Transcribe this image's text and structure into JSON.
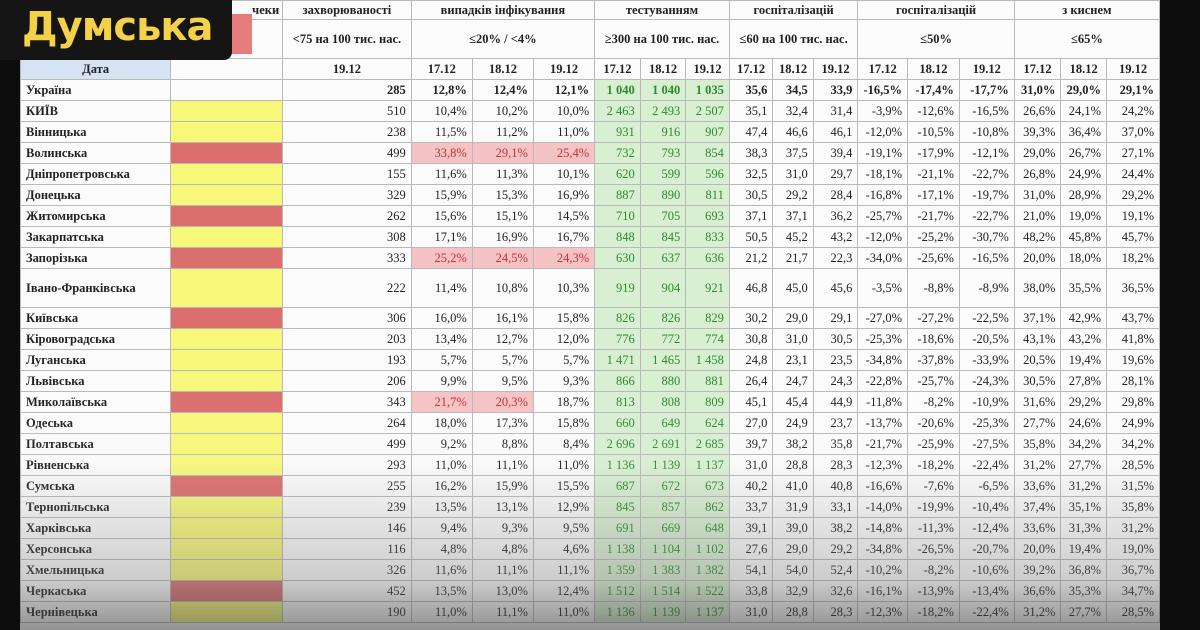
{
  "brand": {
    "logo_text": "Думська"
  },
  "header": {
    "g0": [
      "чеки",
      "захворюваності",
      "випадків інфікування",
      "тестуванням",
      "госпіталізацій",
      "госпіталізацій",
      "з киснем"
    ],
    "g1": [
      "<75 на 100 тис. нас.",
      "≤20% / <4%",
      "≥300 на 100 тис. нас.",
      "≤60 на 100 тис. нас.",
      "≤50%",
      "≤65%"
    ],
    "date_label": "Дата",
    "d_single": "19.12",
    "d": [
      "17.12",
      "18.12",
      "19.12"
    ]
  },
  "rows": [
    {
      "name": "Україна",
      "flag": "none",
      "c": "285",
      "i": [
        "12,8%",
        "12,4%",
        "12,1%"
      ],
      "t": [
        "1 040",
        "1 040",
        "1 035"
      ],
      "h": [
        "35,6",
        "34,5",
        "33,9"
      ],
      "g": [
        "-16,5%",
        "-17,4%",
        "-17,7%"
      ],
      "o": [
        "31,0%",
        "29,0%",
        "29,1%"
      ]
    },
    {
      "name": "КИЇВ",
      "flag": "yellow",
      "c": "510",
      "i": [
        "10,4%",
        "10,2%",
        "10,0%"
      ],
      "t": [
        "2 463",
        "2 493",
        "2 507"
      ],
      "h": [
        "35,1",
        "32,4",
        "31,4"
      ],
      "g": [
        "-3,9%",
        "-12,6%",
        "-16,5%"
      ],
      "o": [
        "26,6%",
        "24,1%",
        "24,2%"
      ]
    },
    {
      "name": "Вінницька",
      "flag": "yellow",
      "c": "238",
      "i": [
        "11,5%",
        "11,2%",
        "11,0%"
      ],
      "t": [
        "931",
        "916",
        "907"
      ],
      "h": [
        "47,4",
        "46,6",
        "46,1"
      ],
      "g": [
        "-12,0%",
        "-10,5%",
        "-10,8%"
      ],
      "o": [
        "39,3%",
        "36,4%",
        "37,0%"
      ]
    },
    {
      "name": "Волинська",
      "flag": "red",
      "c": "499",
      "i": [
        "33,8%",
        "29,1%",
        "25,4%"
      ],
      "ipink": true,
      "t": [
        "732",
        "793",
        "854"
      ],
      "h": [
        "38,3",
        "37,5",
        "39,4"
      ],
      "g": [
        "-19,1%",
        "-17,9%",
        "-12,1%"
      ],
      "o": [
        "29,0%",
        "26,7%",
        "27,1%"
      ]
    },
    {
      "name": "Дніпропетровська",
      "flag": "yellow",
      "c": "155",
      "i": [
        "11,6%",
        "11,3%",
        "10,1%"
      ],
      "t": [
        "620",
        "599",
        "596"
      ],
      "h": [
        "32,5",
        "31,0",
        "29,7"
      ],
      "g": [
        "-18,1%",
        "-21,1%",
        "-22,7%"
      ],
      "o": [
        "26,8%",
        "24,9%",
        "24,4%"
      ]
    },
    {
      "name": "Донецька",
      "flag": "yellow",
      "c": "329",
      "i": [
        "15,9%",
        "15,3%",
        "16,9%"
      ],
      "t": [
        "887",
        "890",
        "811"
      ],
      "h": [
        "30,5",
        "29,2",
        "28,4"
      ],
      "g": [
        "-16,8%",
        "-17,1%",
        "-19,7%"
      ],
      "o": [
        "31,0%",
        "28,9%",
        "29,2%"
      ]
    },
    {
      "name": "Житомирська",
      "flag": "red",
      "c": "262",
      "i": [
        "15,6%",
        "15,1%",
        "14,5%"
      ],
      "t": [
        "710",
        "705",
        "693"
      ],
      "h": [
        "37,1",
        "37,1",
        "36,2"
      ],
      "g": [
        "-25,7%",
        "-21,7%",
        "-22,7%"
      ],
      "o": [
        "21,0%",
        "19,0%",
        "19,1%"
      ]
    },
    {
      "name": "Закарпатська",
      "flag": "yellow",
      "c": "308",
      "i": [
        "17,1%",
        "16,9%",
        "16,7%"
      ],
      "t": [
        "848",
        "845",
        "833"
      ],
      "h": [
        "50,5",
        "45,2",
        "43,2"
      ],
      "g": [
        "-12,0%",
        "-25,2%",
        "-30,7%"
      ],
      "o": [
        "48,2%",
        "45,8%",
        "45,7%"
      ]
    },
    {
      "name": "Запорізька",
      "flag": "red",
      "c": "333",
      "i": [
        "25,2%",
        "24,5%",
        "24,3%"
      ],
      "ipink": true,
      "t": [
        "630",
        "637",
        "636"
      ],
      "h": [
        "21,2",
        "21,7",
        "22,3"
      ],
      "g": [
        "-34,0%",
        "-25,6%",
        "-16,5%"
      ],
      "o": [
        "20,0%",
        "18,0%",
        "18,2%"
      ]
    },
    {
      "name": "Івано-Франківська",
      "flag": "yellow",
      "tall": true,
      "c": "222",
      "i": [
        "11,4%",
        "10,8%",
        "10,3%"
      ],
      "t": [
        "919",
        "904",
        "921"
      ],
      "h": [
        "46,8",
        "45,0",
        "45,6"
      ],
      "g": [
        "-3,5%",
        "-8,8%",
        "-8,9%"
      ],
      "o": [
        "38,0%",
        "35,5%",
        "36,5%"
      ]
    },
    {
      "name": "Київська",
      "flag": "red",
      "c": "306",
      "i": [
        "16,0%",
        "16,1%",
        "15,8%"
      ],
      "t": [
        "826",
        "826",
        "829"
      ],
      "h": [
        "30,2",
        "29,0",
        "29,1"
      ],
      "g": [
        "-27,0%",
        "-27,2%",
        "-22,5%"
      ],
      "o": [
        "37,1%",
        "42,9%",
        "43,7%"
      ]
    },
    {
      "name": "Кіровоградська",
      "flag": "yellow",
      "c": "203",
      "i": [
        "13,4%",
        "12,7%",
        "12,0%"
      ],
      "t": [
        "776",
        "772",
        "774"
      ],
      "h": [
        "30,8",
        "31,0",
        "30,5"
      ],
      "g": [
        "-25,3%",
        "-18,6%",
        "-20,5%"
      ],
      "o": [
        "43,1%",
        "43,2%",
        "41,8%"
      ]
    },
    {
      "name": "Луганська",
      "flag": "yellow",
      "c": "193",
      "i": [
        "5,7%",
        "5,7%",
        "5,7%"
      ],
      "t": [
        "1 471",
        "1 465",
        "1 458"
      ],
      "h": [
        "24,8",
        "23,1",
        "23,5"
      ],
      "g": [
        "-34,8%",
        "-37,8%",
        "-33,9%"
      ],
      "o": [
        "20,5%",
        "19,4%",
        "19,6%"
      ]
    },
    {
      "name": "Львівська",
      "flag": "yellow",
      "c": "206",
      "i": [
        "9,9%",
        "9,5%",
        "9,3%"
      ],
      "t": [
        "866",
        "880",
        "881"
      ],
      "h": [
        "26,4",
        "24,7",
        "24,3"
      ],
      "g": [
        "-22,8%",
        "-25,7%",
        "-24,3%"
      ],
      "o": [
        "30,5%",
        "27,8%",
        "28,1%"
      ]
    },
    {
      "name": "Миколаївська",
      "flag": "red",
      "c": "343",
      "i": [
        "21,7%",
        "20,3%",
        "18,7%"
      ],
      "ipink2": true,
      "t": [
        "813",
        "808",
        "809"
      ],
      "h": [
        "45,1",
        "45,4",
        "44,9"
      ],
      "g": [
        "-11,8%",
        "-8,2%",
        "-10,9%"
      ],
      "o": [
        "31,6%",
        "29,2%",
        "29,8%"
      ]
    },
    {
      "name": "Одеська",
      "flag": "yellow",
      "c": "264",
      "i": [
        "18,0%",
        "17,3%",
        "15,8%"
      ],
      "t": [
        "660",
        "649",
        "624"
      ],
      "h": [
        "27,0",
        "24,9",
        "23,7"
      ],
      "g": [
        "-13,7%",
        "-20,6%",
        "-25,3%"
      ],
      "o": [
        "27,7%",
        "24,6%",
        "24,9%"
      ]
    },
    {
      "name": "Полтавська",
      "flag": "yellow",
      "c": "499",
      "i": [
        "9,2%",
        "8,8%",
        "8,4%"
      ],
      "t": [
        "2 696",
        "2 691",
        "2 685"
      ],
      "h": [
        "39,7",
        "38,2",
        "35,8"
      ],
      "g": [
        "-21,7%",
        "-25,9%",
        "-27,5%"
      ],
      "o": [
        "35,8%",
        "34,2%",
        "34,2%"
      ]
    },
    {
      "name": "Рівненська",
      "flag": "yellow",
      "c": "293",
      "i": [
        "11,0%",
        "11,1%",
        "11,0%"
      ],
      "t": [
        "1 136",
        "1 139",
        "1 137"
      ],
      "h": [
        "31,0",
        "28,8",
        "28,3"
      ],
      "g": [
        "-12,3%",
        "-18,2%",
        "-22,4%"
      ],
      "o": [
        "31,2%",
        "27,7%",
        "28,5%"
      ]
    },
    {
      "name": "Сумська",
      "flag": "red",
      "c": "255",
      "i": [
        "16,2%",
        "15,9%",
        "15,5%"
      ],
      "t": [
        "687",
        "672",
        "673"
      ],
      "h": [
        "40,2",
        "41,0",
        "40,8"
      ],
      "g": [
        "-16,6%",
        "-7,6%",
        "-6,5%"
      ],
      "o": [
        "33,6%",
        "31,2%",
        "31,5%"
      ]
    },
    {
      "name": "Тернопільська",
      "flag": "yellow",
      "c": "239",
      "i": [
        "13,5%",
        "13,1%",
        "12,9%"
      ],
      "t": [
        "845",
        "857",
        "862"
      ],
      "h": [
        "33,7",
        "31,9",
        "33,1"
      ],
      "g": [
        "-14,0%",
        "-19,9%",
        "-10,4%"
      ],
      "o": [
        "37,4%",
        "35,1%",
        "35,8%"
      ]
    },
    {
      "name": "Харківська",
      "flag": "yellow",
      "c": "146",
      "i": [
        "9,4%",
        "9,3%",
        "9,5%"
      ],
      "t": [
        "691",
        "669",
        "648"
      ],
      "h": [
        "39,1",
        "39,0",
        "38,2"
      ],
      "g": [
        "-14,8%",
        "-11,3%",
        "-12,4%"
      ],
      "o": [
        "33,6%",
        "31,3%",
        "31,2%"
      ]
    },
    {
      "name": "Херсонська",
      "flag": "yellow",
      "c": "116",
      "i": [
        "4,8%",
        "4,8%",
        "4,6%"
      ],
      "t": [
        "1 138",
        "1 104",
        "1 102"
      ],
      "h": [
        "27,6",
        "29,0",
        "29,2"
      ],
      "g": [
        "-34,8%",
        "-26,5%",
        "-20,7%"
      ],
      "o": [
        "20,0%",
        "19,4%",
        "19,0%"
      ]
    },
    {
      "name": "Хмельницька",
      "flag": "yellow",
      "c": "326",
      "i": [
        "11,6%",
        "11,1%",
        "11,1%"
      ],
      "t": [
        "1 359",
        "1 383",
        "1 382"
      ],
      "h": [
        "54,1",
        "54,0",
        "52,4"
      ],
      "g": [
        "-10,2%",
        "-8,2%",
        "-10,6%"
      ],
      "o": [
        "39,2%",
        "36,8%",
        "36,7%"
      ]
    },
    {
      "name": "Черкаська",
      "flag": "red",
      "c": "452",
      "i": [
        "13,5%",
        "13,0%",
        "12,4%"
      ],
      "t": [
        "1 512",
        "1 514",
        "1 522"
      ],
      "h": [
        "33,8",
        "32,9",
        "32,6"
      ],
      "g": [
        "-16,1%",
        "-13,9%",
        "-13,4%"
      ],
      "o": [
        "36,6%",
        "35,3%",
        "34,7%"
      ]
    },
    {
      "name": "Чернівецька",
      "flag": "yellow",
      "c": "190",
      "i": [
        "11,0%",
        "11,1%",
        "11,0%"
      ],
      "t": [
        "1 136",
        "1 139",
        "1 137"
      ],
      "h": [
        "31,0",
        "28,8",
        "28,3"
      ],
      "g": [
        "-12,3%",
        "-18,2%",
        "-22,4%"
      ],
      "o": [
        "31,2%",
        "27,7%",
        "28,5%"
      ]
    }
  ]
}
